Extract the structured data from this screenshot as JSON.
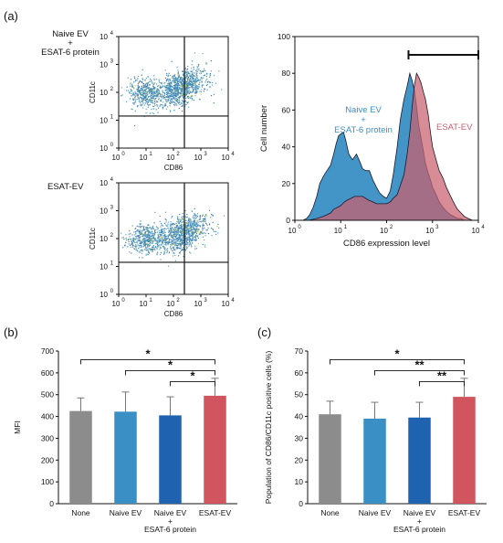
{
  "panels": {
    "a": "(a)",
    "b": "(b)",
    "c": "(c)"
  },
  "scatter": {
    "top_label_line1": "Naive EV",
    "top_label_plus": "+",
    "top_label_line3": "ESAT-6 protein",
    "bottom_label": "ESAT-EV",
    "xlabel": "CD86",
    "ylabel": "CD11c",
    "tick_base": "10",
    "tick_exps": [
      "0",
      "1",
      "2",
      "3",
      "4"
    ],
    "colors": [
      "#3a7fb0",
      "#5aa0c8",
      "#6a9f6a",
      "#c8c040"
    ]
  },
  "chart_data": [
    {
      "type": "area",
      "id": "histogram",
      "xlabel": "CD86 expression level",
      "ylabel": "Cell number",
      "x_scale": "log",
      "xlim": [
        1,
        10000
      ],
      "ylim": [
        0,
        100
      ],
      "yticks": [
        0,
        20,
        40,
        60,
        80,
        100
      ],
      "gate": {
        "from": 300,
        "to": 10000
      },
      "series": [
        {
          "name_line1": "Naive EV",
          "name_plus": "+",
          "name_line3": "ESAT-6 protein",
          "color": "#3a8fc4",
          "x": [
            1.5,
            1.8,
            2.1,
            2.5,
            3,
            3.5,
            4.2,
            5,
            6,
            7,
            8,
            9,
            10,
            11.5,
            13,
            15,
            18,
            22,
            26,
            30,
            35,
            42,
            50,
            60,
            70,
            85,
            100,
            120,
            140,
            170,
            200,
            240,
            280,
            320,
            360,
            400,
            450,
            500,
            560,
            630,
            700,
            800,
            900,
            1000,
            1200,
            1400,
            1700,
            2000,
            2500,
            3000,
            3500,
            4200,
            5000,
            6000,
            7500
          ],
          "y": [
            0,
            1,
            3,
            7,
            13,
            20,
            24,
            27,
            30,
            36,
            42,
            46,
            47,
            48,
            43,
            36,
            33,
            36,
            32,
            28,
            27,
            27,
            22,
            18,
            15,
            13,
            12,
            16,
            25,
            40,
            55,
            66,
            73,
            80,
            76,
            71,
            62,
            52,
            45,
            38,
            31,
            26,
            22,
            18,
            14,
            10,
            7,
            5,
            3,
            2,
            1,
            1,
            0,
            0,
            0
          ]
        },
        {
          "name": "ESAT-EV",
          "color": "#c8606e",
          "x": [
            2,
            3,
            4,
            5,
            6,
            7,
            8.5,
            10,
            12,
            14,
            17,
            20,
            25,
            30,
            40,
            50,
            60,
            70,
            85,
            100,
            120,
            140,
            170,
            200,
            240,
            280,
            320,
            360,
            400,
            450,
            500,
            560,
            630,
            700,
            800,
            900,
            1000,
            1200,
            1400,
            1700,
            2000,
            2500,
            3000,
            3500,
            4200,
            5000,
            6000,
            7500
          ],
          "y": [
            0,
            1,
            2,
            3,
            4,
            6,
            7,
            8,
            10,
            11,
            12,
            13,
            13,
            13,
            11,
            10,
            9,
            9,
            9,
            9,
            10,
            12,
            14,
            19,
            25,
            36,
            48,
            62,
            73,
            80,
            78,
            75,
            70,
            66,
            58,
            48,
            40,
            33,
            27,
            23,
            18,
            13,
            9,
            6,
            4,
            2,
            1,
            0
          ]
        }
      ]
    },
    {
      "type": "bar",
      "id": "mfi",
      "ylabel": "MFI",
      "ylim": [
        0,
        700
      ],
      "yticks": [
        0,
        100,
        200,
        300,
        400,
        500,
        600,
        700
      ],
      "categories": [
        {
          "line1": "None",
          "line2": "",
          "line3": ""
        },
        {
          "line1": "Naive EV",
          "line2": "",
          "line3": ""
        },
        {
          "line1": "Naive EV",
          "line2": "+",
          "line3": "ESAT-6 protein"
        },
        {
          "line1": "ESAT-EV",
          "line2": "",
          "line3": ""
        }
      ],
      "values": [
        425,
        422,
        405,
        495
      ],
      "errors": [
        60,
        90,
        85,
        80
      ],
      "colors": [
        "#8c8c8c",
        "#3a8fc4",
        "#1f63b0",
        "#d0555e"
      ],
      "significance": [
        {
          "from": 0,
          "to": 3,
          "label": "*",
          "y": 660
        },
        {
          "from": 1,
          "to": 3,
          "label": "*",
          "y": 610
        },
        {
          "from": 2,
          "to": 3,
          "label": "*",
          "y": 560
        }
      ]
    },
    {
      "type": "bar",
      "id": "population",
      "ylabel": "Population of CD86/CD11c positive cells (%)",
      "ylim": [
        0,
        70
      ],
      "yticks": [
        0,
        10,
        20,
        30,
        40,
        50,
        60,
        70
      ],
      "categories": [
        {
          "line1": "None",
          "line2": "",
          "line3": ""
        },
        {
          "line1": "Naive EV",
          "line2": "",
          "line3": ""
        },
        {
          "line1": "Naive EV",
          "line2": "+",
          "line3": "ESAT-6 protein"
        },
        {
          "line1": "ESAT-EV",
          "line2": "",
          "line3": ""
        }
      ],
      "values": [
        41,
        39,
        39.5,
        49
      ],
      "errors": [
        6,
        7.5,
        7,
        8.5
      ],
      "colors": [
        "#8c8c8c",
        "#3a8fc4",
        "#1f63b0",
        "#d0555e"
      ],
      "significance": [
        {
          "from": 0,
          "to": 3,
          "label": "*",
          "y": 66
        },
        {
          "from": 1,
          "to": 3,
          "label": "**",
          "y": 61
        },
        {
          "from": 2,
          "to": 3,
          "label": "**",
          "y": 56
        }
      ]
    }
  ]
}
